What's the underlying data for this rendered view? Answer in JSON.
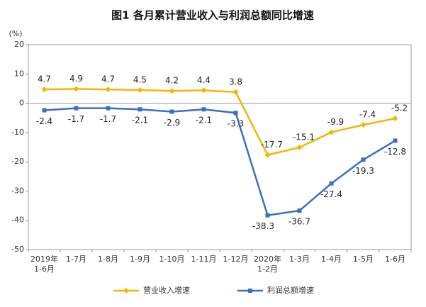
{
  "chart_data": {
    "type": "line",
    "title": "图1  各月累计营业收入与利润总额同比增速",
    "y_unit": "(%)",
    "categories": [
      [
        "2019年",
        "1-6月"
      ],
      "1-7月",
      "1-8月",
      "1-9月",
      "1-10月",
      "1-11月",
      "1-12月",
      [
        "2020年",
        "1-2月"
      ],
      "1-3月",
      "1-4月",
      "1-5月",
      "1-6月"
    ],
    "series": [
      {
        "name": "营业收入增速",
        "color": "#f2b705",
        "marker": "diamond",
        "values": [
          4.7,
          4.9,
          4.7,
          4.5,
          4.2,
          4.4,
          3.8,
          -17.7,
          -15.1,
          -9.9,
          -7.4,
          -5.2
        ]
      },
      {
        "name": "利润总额增速",
        "color": "#3b6fbf",
        "marker": "square",
        "values": [
          -2.4,
          -1.7,
          -1.7,
          -2.1,
          -2.9,
          -2.1,
          -3.3,
          -38.3,
          -36.7,
          -27.4,
          -19.3,
          -12.8
        ]
      }
    ],
    "ylim": [
      -50,
      20
    ],
    "yticks": [
      -50,
      -40,
      -30,
      -20,
      -10,
      0,
      10,
      20
    ],
    "grid": false
  }
}
